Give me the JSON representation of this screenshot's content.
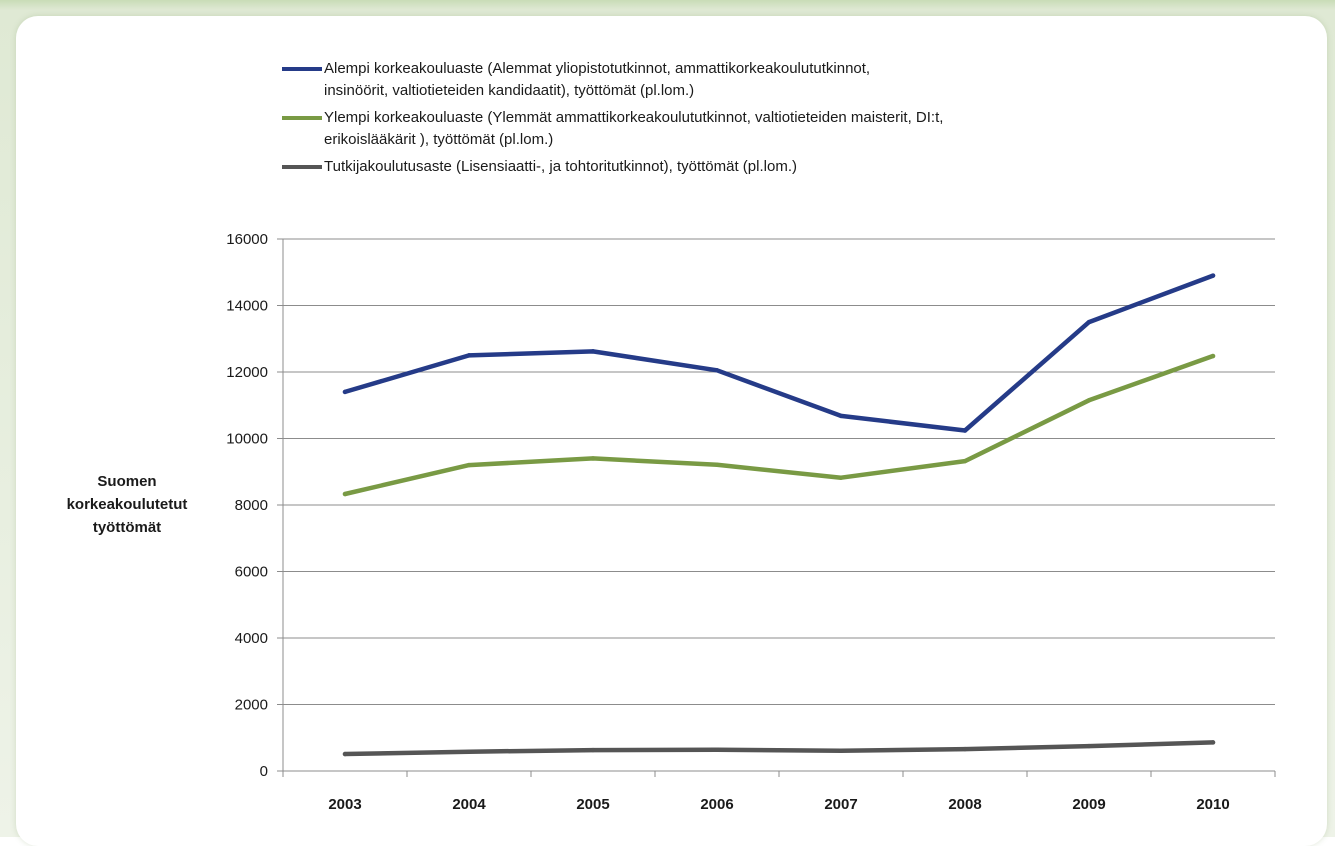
{
  "chart_data": {
    "type": "line",
    "title": "",
    "xlabel": "",
    "ylabel": "Suomen korkeakoulutetut työttömät",
    "ylim": [
      0,
      16000
    ],
    "yticks": [
      0,
      2000,
      4000,
      6000,
      8000,
      10000,
      12000,
      14000,
      16000
    ],
    "grid": true,
    "legend_position": "top",
    "x": [
      "2003",
      "2004",
      "2005",
      "2006",
      "2007",
      "2008",
      "2009",
      "2010"
    ],
    "series": [
      {
        "name": "Alempi korkeakouluaste (Alemmat yliopistotutkinnot,  ammattikorkeakoulututkinnot, insinöörit, valtiotieteiden kandidaatit), työttömät (pl.lom.)",
        "color": "#253b88",
        "values": [
          11400,
          12500,
          12620,
          12050,
          10680,
          10240,
          13500,
          14900
        ]
      },
      {
        "name": "Ylempi korkeakouluaste (Ylemmät  ammattikorkeakoulututkinnot, valtiotieteiden maisterit, DI:t, erikoislääkärit ), työttömät (pl.lom.)",
        "color": "#799a44",
        "values": [
          8330,
          9200,
          9400,
          9210,
          8820,
          9320,
          11150,
          12480
        ]
      },
      {
        "name": "Tutkijakoulutusaste (Lisensiaatti-, ja tohtoritutkinnot), työttömät (pl.lom.)",
        "color": "#555555",
        "values": [
          510,
          580,
          630,
          640,
          610,
          660,
          750,
          860
        ]
      }
    ]
  },
  "legend": {
    "lines": [
      [
        "Alempi korkeakouluaste (Alemmat yliopistotutkinnot,  ammattikorkeakoulututkinnot,",
        "insinöörit, valtiotieteiden kandidaatit), työttömät (pl.lom.)"
      ],
      [
        "Ylempi korkeakouluaste (Ylemmät  ammattikorkeakoulututkinnot, valtiotieteiden maisterit, DI:t,",
        "erikoislääkärit ), työttömät (pl.lom.)"
      ],
      [
        "Tutkijakoulutusaste (Lisensiaatti-, ja tohtoritutkinnot), työttömät (pl.lom.)"
      ]
    ]
  },
  "ylabel_lines": [
    "Suomen",
    "korkeakoulutetut",
    "työttömät"
  ]
}
